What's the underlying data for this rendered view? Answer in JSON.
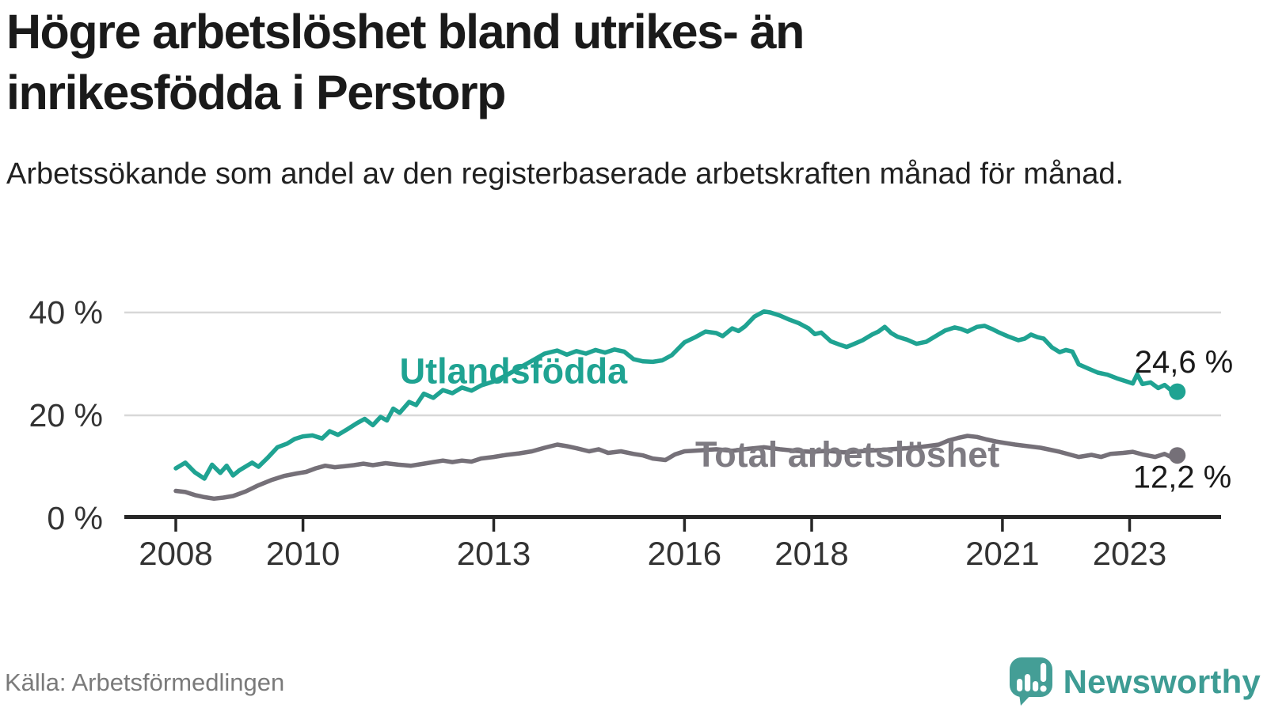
{
  "header": {
    "title": "Högre arbetslöshet bland utrikes- än inrikesfödda i Perstorp",
    "subtitle": "Arbetssökande som andel av den registerbaserade arbetskraften månad för månad."
  },
  "footer": {
    "source": "Källa: Arbetsförmedlingen",
    "brand": "Newsworthy",
    "logo_icon": "speech-bubble-bar-chart-exclamation"
  },
  "colors": {
    "teal_line": "#1FA392",
    "gray_line": "#757078",
    "gray_label": "#7E7B82",
    "axis": "#262626",
    "grid": "#D8D8D8",
    "tick_text": "#333333",
    "value_text": "#1A1A1A",
    "logo_teal": "#449E96"
  },
  "chart_data": {
    "type": "line",
    "unit": "%",
    "grid": true,
    "x_axis": {
      "ticks": [
        {
          "year": 2008,
          "label": "2008"
        },
        {
          "year": 2010,
          "label": "2010"
        },
        {
          "year": 2013,
          "label": "2013"
        },
        {
          "year": 2016,
          "label": "2016"
        },
        {
          "year": 2018,
          "label": "2018"
        },
        {
          "year": 2021,
          "label": "2021"
        },
        {
          "year": 2023,
          "label": "2023"
        }
      ],
      "range_years": [
        2007.2,
        2024.3
      ]
    },
    "y_axis": {
      "ticks": [
        {
          "value": 0,
          "label": "0 %"
        },
        {
          "value": 20,
          "label": "20 %"
        },
        {
          "value": 40,
          "label": "40 %"
        }
      ],
      "range": [
        0,
        44
      ]
    },
    "series": [
      {
        "name": "Utlandsfödda",
        "color": "#1FA392",
        "end_label": "24,6 %",
        "end_value": 24.6,
        "label_anchor": {
          "year": 2011.52,
          "value": 26.2
        },
        "points": [
          [
            2008.0,
            9.7
          ],
          [
            2008.15,
            10.8
          ],
          [
            2008.3,
            8.9
          ],
          [
            2008.45,
            7.7
          ],
          [
            2008.57,
            10.4
          ],
          [
            2008.7,
            8.8
          ],
          [
            2008.8,
            10.2
          ],
          [
            2008.9,
            8.3
          ],
          [
            2009.0,
            9.3
          ],
          [
            2009.2,
            10.8
          ],
          [
            2009.3,
            10.0
          ],
          [
            2009.45,
            11.8
          ],
          [
            2009.6,
            13.8
          ],
          [
            2009.75,
            14.5
          ],
          [
            2009.87,
            15.4
          ],
          [
            2010.0,
            15.9
          ],
          [
            2010.15,
            16.1
          ],
          [
            2010.3,
            15.5
          ],
          [
            2010.42,
            16.9
          ],
          [
            2010.55,
            16.2
          ],
          [
            2010.7,
            17.3
          ],
          [
            2010.85,
            18.5
          ],
          [
            2010.97,
            19.3
          ],
          [
            2011.1,
            18.1
          ],
          [
            2011.22,
            19.7
          ],
          [
            2011.32,
            19.0
          ],
          [
            2011.42,
            21.3
          ],
          [
            2011.52,
            20.5
          ],
          [
            2011.67,
            22.6
          ],
          [
            2011.78,
            22.0
          ],
          [
            2011.9,
            24.2
          ],
          [
            2012.05,
            23.4
          ],
          [
            2012.2,
            24.9
          ],
          [
            2012.35,
            24.3
          ],
          [
            2012.5,
            25.4
          ],
          [
            2012.65,
            24.8
          ],
          [
            2012.8,
            25.8
          ],
          [
            2013.0,
            26.6
          ],
          [
            2013.2,
            27.8
          ],
          [
            2013.4,
            29.2
          ],
          [
            2013.6,
            30.6
          ],
          [
            2013.8,
            32.0
          ],
          [
            2014.0,
            32.6
          ],
          [
            2014.15,
            31.8
          ],
          [
            2014.3,
            32.5
          ],
          [
            2014.45,
            32.0
          ],
          [
            2014.6,
            32.7
          ],
          [
            2014.75,
            32.2
          ],
          [
            2014.9,
            32.8
          ],
          [
            2015.05,
            32.4
          ],
          [
            2015.2,
            30.9
          ],
          [
            2015.35,
            30.5
          ],
          [
            2015.5,
            30.4
          ],
          [
            2015.65,
            30.7
          ],
          [
            2015.8,
            31.7
          ],
          [
            2016.0,
            34.2
          ],
          [
            2016.17,
            35.2
          ],
          [
            2016.33,
            36.3
          ],
          [
            2016.5,
            36.0
          ],
          [
            2016.6,
            35.4
          ],
          [
            2016.75,
            36.9
          ],
          [
            2016.85,
            36.4
          ],
          [
            2016.95,
            37.3
          ],
          [
            2017.1,
            39.2
          ],
          [
            2017.25,
            40.2
          ],
          [
            2017.35,
            40.0
          ],
          [
            2017.5,
            39.4
          ],
          [
            2017.65,
            38.6
          ],
          [
            2017.8,
            37.9
          ],
          [
            2017.95,
            36.9
          ],
          [
            2018.05,
            35.8
          ],
          [
            2018.15,
            36.1
          ],
          [
            2018.3,
            34.4
          ],
          [
            2018.45,
            33.7
          ],
          [
            2018.55,
            33.3
          ],
          [
            2018.65,
            33.8
          ],
          [
            2018.8,
            34.6
          ],
          [
            2018.95,
            35.7
          ],
          [
            2019.05,
            36.3
          ],
          [
            2019.15,
            37.2
          ],
          [
            2019.25,
            36.0
          ],
          [
            2019.35,
            35.3
          ],
          [
            2019.5,
            34.7
          ],
          [
            2019.65,
            33.9
          ],
          [
            2019.8,
            34.3
          ],
          [
            2019.95,
            35.4
          ],
          [
            2020.1,
            36.5
          ],
          [
            2020.25,
            37.1
          ],
          [
            2020.35,
            36.8
          ],
          [
            2020.45,
            36.3
          ],
          [
            2020.6,
            37.2
          ],
          [
            2020.72,
            37.4
          ],
          [
            2020.85,
            36.7
          ],
          [
            2020.95,
            36.1
          ],
          [
            2021.1,
            35.3
          ],
          [
            2021.25,
            34.6
          ],
          [
            2021.35,
            34.9
          ],
          [
            2021.45,
            35.7
          ],
          [
            2021.55,
            35.2
          ],
          [
            2021.65,
            34.9
          ],
          [
            2021.78,
            33.2
          ],
          [
            2021.9,
            32.3
          ],
          [
            2022.0,
            32.7
          ],
          [
            2022.1,
            32.4
          ],
          [
            2022.2,
            29.9
          ],
          [
            2022.35,
            29.1
          ],
          [
            2022.5,
            28.3
          ],
          [
            2022.65,
            27.9
          ],
          [
            2022.8,
            27.2
          ],
          [
            2022.95,
            26.6
          ],
          [
            2023.05,
            26.2
          ],
          [
            2023.12,
            28.0
          ],
          [
            2023.2,
            26.1
          ],
          [
            2023.33,
            26.4
          ],
          [
            2023.45,
            25.3
          ],
          [
            2023.55,
            25.9
          ],
          [
            2023.65,
            24.9
          ],
          [
            2023.75,
            24.6
          ]
        ]
      },
      {
        "name": "Total arbetslöshet",
        "color": "#757078",
        "label_color": "#7E7B82",
        "end_label": "12,2 %",
        "end_value": 12.2,
        "label_anchor": {
          "year": 2016.17,
          "value": 10.0
        },
        "points": [
          [
            2008.0,
            5.3
          ],
          [
            2008.15,
            5.1
          ],
          [
            2008.3,
            4.5
          ],
          [
            2008.45,
            4.1
          ],
          [
            2008.6,
            3.8
          ],
          [
            2008.75,
            4.0
          ],
          [
            2008.9,
            4.3
          ],
          [
            2009.1,
            5.2
          ],
          [
            2009.3,
            6.4
          ],
          [
            2009.5,
            7.4
          ],
          [
            2009.7,
            8.2
          ],
          [
            2009.9,
            8.7
          ],
          [
            2010.05,
            9.0
          ],
          [
            2010.2,
            9.7
          ],
          [
            2010.35,
            10.2
          ],
          [
            2010.5,
            9.9
          ],
          [
            2010.65,
            10.1
          ],
          [
            2010.8,
            10.3
          ],
          [
            2010.95,
            10.6
          ],
          [
            2011.1,
            10.3
          ],
          [
            2011.3,
            10.7
          ],
          [
            2011.5,
            10.4
          ],
          [
            2011.7,
            10.2
          ],
          [
            2011.9,
            10.6
          ],
          [
            2012.05,
            10.9
          ],
          [
            2012.2,
            11.2
          ],
          [
            2012.35,
            10.9
          ],
          [
            2012.5,
            11.2
          ],
          [
            2012.65,
            11.0
          ],
          [
            2012.8,
            11.6
          ],
          [
            2013.0,
            11.9
          ],
          [
            2013.2,
            12.3
          ],
          [
            2013.4,
            12.6
          ],
          [
            2013.6,
            13.0
          ],
          [
            2013.8,
            13.7
          ],
          [
            2014.0,
            14.3
          ],
          [
            2014.15,
            14.0
          ],
          [
            2014.3,
            13.6
          ],
          [
            2014.5,
            13.0
          ],
          [
            2014.65,
            13.4
          ],
          [
            2014.8,
            12.7
          ],
          [
            2015.0,
            13.0
          ],
          [
            2015.2,
            12.5
          ],
          [
            2015.35,
            12.2
          ],
          [
            2015.5,
            11.6
          ],
          [
            2015.7,
            11.3
          ],
          [
            2015.85,
            12.4
          ],
          [
            2016.0,
            13.0
          ],
          [
            2016.25,
            13.2
          ],
          [
            2016.5,
            13.4
          ],
          [
            2016.75,
            13.1
          ],
          [
            2017.0,
            13.5
          ],
          [
            2017.25,
            13.8
          ],
          [
            2017.5,
            13.4
          ],
          [
            2017.75,
            13.1
          ],
          [
            2018.0,
            12.9
          ],
          [
            2018.25,
            13.1
          ],
          [
            2018.5,
            12.8
          ],
          [
            2018.75,
            13.0
          ],
          [
            2019.0,
            13.2
          ],
          [
            2019.25,
            13.4
          ],
          [
            2019.5,
            13.6
          ],
          [
            2019.75,
            13.9
          ],
          [
            2020.0,
            14.3
          ],
          [
            2020.15,
            15.1
          ],
          [
            2020.3,
            15.6
          ],
          [
            2020.45,
            16.0
          ],
          [
            2020.6,
            15.8
          ],
          [
            2020.75,
            15.3
          ],
          [
            2020.9,
            14.9
          ],
          [
            2021.05,
            14.6
          ],
          [
            2021.2,
            14.3
          ],
          [
            2021.4,
            14.0
          ],
          [
            2021.6,
            13.7
          ],
          [
            2021.75,
            13.3
          ],
          [
            2021.9,
            12.9
          ],
          [
            2022.05,
            12.4
          ],
          [
            2022.2,
            11.9
          ],
          [
            2022.4,
            12.3
          ],
          [
            2022.55,
            11.9
          ],
          [
            2022.7,
            12.5
          ],
          [
            2022.9,
            12.7
          ],
          [
            2023.05,
            12.9
          ],
          [
            2023.2,
            12.4
          ],
          [
            2023.4,
            11.9
          ],
          [
            2023.55,
            12.5
          ],
          [
            2023.65,
            11.9
          ],
          [
            2023.75,
            12.2
          ]
        ]
      }
    ]
  }
}
